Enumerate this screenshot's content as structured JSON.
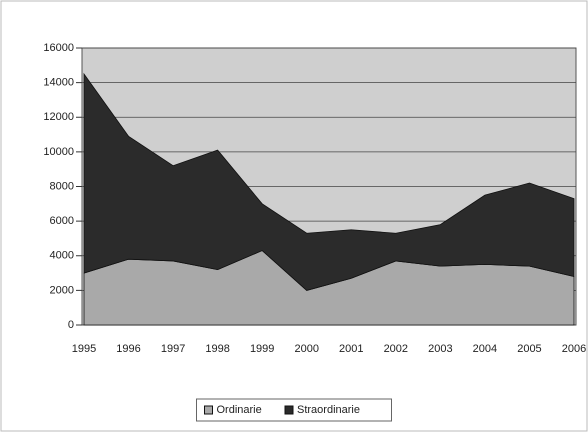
{
  "chart_data": {
    "type": "area",
    "stacked": true,
    "categories": [
      "1995",
      "1996",
      "1997",
      "1998",
      "1999",
      "2000",
      "2001",
      "2002",
      "2003",
      "2004",
      "2005",
      "2006"
    ],
    "series": [
      {
        "name": "Ordinarie",
        "color": "#a9a9a9",
        "values": [
          3000,
          3800,
          3700,
          3200,
          4300,
          2000,
          2700,
          3700,
          3400,
          3500,
          3400,
          2800
        ]
      },
      {
        "name": "Straordinarie",
        "color": "#2b2b2b",
        "values": [
          11500,
          7100,
          5500,
          6900,
          2700,
          3300,
          2800,
          1600,
          2400,
          4000,
          4800,
          4500
        ]
      }
    ],
    "ylim": [
      0,
      16000
    ],
    "yticks": [
      0,
      2000,
      4000,
      6000,
      8000,
      10000,
      12000,
      14000,
      16000
    ],
    "grid": true,
    "legend": "bottom"
  }
}
